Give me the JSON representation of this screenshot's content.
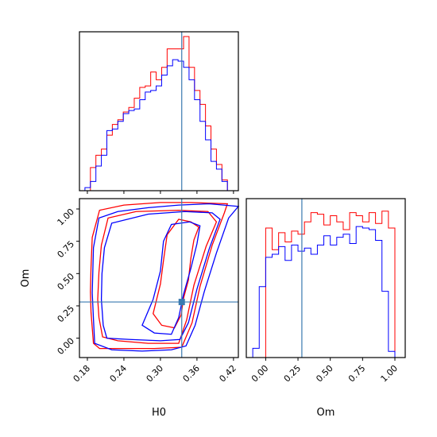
{
  "chart_data": [
    {
      "id": "h0_hist",
      "type": "histogram",
      "title": "",
      "xlabel": "",
      "ylabel": "",
      "xlim": [
        0.167,
        0.428
      ],
      "ylim": [
        0,
        1.0
      ],
      "x_ticks": [
        0.18,
        0.24,
        0.3,
        0.36,
        0.42
      ],
      "x_tick_labels_visible": false,
      "y_ticks_visible": false,
      "truth_line": {
        "value": 0.335,
        "color": "#3a7ab0"
      },
      "series": [
        {
          "color": "#ff0000",
          "bins_x": [
            0.167,
            0.176,
            0.185,
            0.194,
            0.203,
            0.212,
            0.221,
            0.23,
            0.239,
            0.248,
            0.257,
            0.266,
            0.275,
            0.284,
            0.293,
            0.302,
            0.311,
            0.32,
            0.329,
            0.338,
            0.347,
            0.356,
            0.365,
            0.374,
            0.383,
            0.392,
            0.401,
            0.41,
            0.419,
            0.428
          ],
          "values": [
            0.0,
            0.0,
            0.15,
            0.23,
            0.27,
            0.36,
            0.43,
            0.46,
            0.51,
            0.54,
            0.6,
            0.67,
            0.68,
            0.77,
            0.72,
            0.8,
            0.92,
            0.92,
            0.92,
            1.0,
            0.8,
            0.65,
            0.56,
            0.42,
            0.27,
            0.17,
            0.07,
            0.0,
            0.0
          ]
        },
        {
          "color": "#0000ff",
          "bins_x": [
            0.167,
            0.176,
            0.185,
            0.194,
            0.203,
            0.212,
            0.221,
            0.23,
            0.239,
            0.248,
            0.257,
            0.266,
            0.275,
            0.284,
            0.293,
            0.302,
            0.311,
            0.32,
            0.329,
            0.338,
            0.347,
            0.356,
            0.365,
            0.374,
            0.383,
            0.392,
            0.401,
            0.41,
            0.419,
            0.428
          ],
          "values": [
            0.0,
            0.02,
            0.06,
            0.16,
            0.23,
            0.39,
            0.4,
            0.45,
            0.5,
            0.52,
            0.53,
            0.59,
            0.64,
            0.65,
            0.68,
            0.75,
            0.81,
            0.85,
            0.84,
            0.8,
            0.72,
            0.59,
            0.45,
            0.33,
            0.19,
            0.14,
            0.06,
            0.0,
            0.0
          ]
        }
      ]
    },
    {
      "id": "joint_contour",
      "type": "contour",
      "title": "",
      "xlabel": "H0",
      "ylabel": "Om",
      "xlim": [
        0.167,
        0.428
      ],
      "ylim": [
        -0.15,
        1.08
      ],
      "x_ticks": [
        "0.18",
        "0.24",
        "0.30",
        "0.36",
        "0.42"
      ],
      "y_ticks": [
        "0.00",
        "0.25",
        "0.50",
        "0.75",
        "1.00"
      ],
      "truth_point": {
        "x": 0.335,
        "y": 0.28,
        "color": "#3a7ab0"
      },
      "series": [
        {
          "color": "#ff0000",
          "contours": [
            [
              [
                0.185,
                0.36
              ],
              [
                0.186,
                0.2
              ],
              [
                0.19,
                -0.04
              ],
              [
                0.2,
                -0.08
              ],
              [
                0.24,
                -0.08
              ],
              [
                0.29,
                -0.08
              ],
              [
                0.335,
                -0.07
              ],
              [
                0.352,
                0.12
              ],
              [
                0.365,
                0.4
              ],
              [
                0.385,
                0.72
              ],
              [
                0.405,
                0.97
              ],
              [
                0.41,
                1.04
              ],
              [
                0.35,
                1.05
              ],
              [
                0.3,
                1.05
              ],
              [
                0.24,
                1.03
              ],
              [
                0.2,
                0.99
              ],
              [
                0.188,
                0.78
              ],
              [
                0.186,
                0.55
              ],
              [
                0.185,
                0.36
              ]
            ],
            [
              [
                0.197,
                0.3
              ],
              [
                0.199,
                0.16
              ],
              [
                0.205,
                0.01
              ],
              [
                0.23,
                -0.02
              ],
              [
                0.28,
                -0.04
              ],
              [
                0.33,
                -0.04
              ],
              [
                0.343,
                0.14
              ],
              [
                0.355,
                0.41
              ],
              [
                0.375,
                0.71
              ],
              [
                0.392,
                0.9
              ],
              [
                0.378,
                0.98
              ],
              [
                0.33,
                0.99
              ],
              [
                0.26,
                0.98
              ],
              [
                0.214,
                0.93
              ],
              [
                0.203,
                0.72
              ],
              [
                0.199,
                0.51
              ],
              [
                0.197,
                0.3
              ]
            ],
            [
              [
                0.288,
                0.19
              ],
              [
                0.302,
                0.1
              ],
              [
                0.323,
                0.08
              ],
              [
                0.334,
                0.18
              ],
              [
                0.338,
                0.31
              ],
              [
                0.346,
                0.45
              ],
              [
                0.35,
                0.62
              ],
              [
                0.355,
                0.76
              ],
              [
                0.363,
                0.86
              ],
              [
                0.35,
                0.9
              ],
              [
                0.33,
                0.92
              ],
              [
                0.311,
                0.8
              ],
              [
                0.305,
                0.6
              ],
              [
                0.3,
                0.42
              ],
              [
                0.288,
                0.19
              ]
            ]
          ]
        },
        {
          "color": "#0000ff",
          "contours": [
            [
              [
                0.188,
                0.35
              ],
              [
                0.19,
                0.15
              ],
              [
                0.192,
                -0.04
              ],
              [
                0.22,
                -0.09
              ],
              [
                0.27,
                -0.1
              ],
              [
                0.318,
                -0.09
              ],
              [
                0.342,
                -0.06
              ],
              [
                0.357,
                0.1
              ],
              [
                0.372,
                0.36
              ],
              [
                0.392,
                0.66
              ],
              [
                0.412,
                0.93
              ],
              [
                0.428,
                1.02
              ],
              [
                0.38,
                1.04
              ],
              [
                0.33,
                1.03
              ],
              [
                0.28,
                1.01
              ],
              [
                0.23,
                0.98
              ],
              [
                0.199,
                0.93
              ],
              [
                0.19,
                0.7
              ],
              [
                0.188,
                0.35
              ]
            ],
            [
              [
                0.203,
                0.3
              ],
              [
                0.206,
                0.1
              ],
              [
                0.212,
                0.0
              ],
              [
                0.25,
                -0.01
              ],
              [
                0.3,
                -0.02
              ],
              [
                0.332,
                -0.01
              ],
              [
                0.346,
                0.12
              ],
              [
                0.36,
                0.38
              ],
              [
                0.38,
                0.69
              ],
              [
                0.398,
                0.92
              ],
              [
                0.385,
                0.97
              ],
              [
                0.34,
                0.98
              ],
              [
                0.28,
                0.96
              ],
              [
                0.22,
                0.89
              ],
              [
                0.208,
                0.7
              ],
              [
                0.204,
                0.5
              ],
              [
                0.203,
                0.3
              ]
            ],
            [
              [
                0.27,
                0.1
              ],
              [
                0.29,
                0.04
              ],
              [
                0.318,
                0.03
              ],
              [
                0.33,
                0.16
              ],
              [
                0.338,
                0.34
              ],
              [
                0.35,
                0.54
              ],
              [
                0.36,
                0.73
              ],
              [
                0.365,
                0.87
              ],
              [
                0.348,
                0.9
              ],
              [
                0.318,
                0.88
              ],
              [
                0.305,
                0.75
              ],
              [
                0.3,
                0.52
              ],
              [
                0.288,
                0.3
              ],
              [
                0.27,
                0.1
              ]
            ]
          ]
        }
      ]
    },
    {
      "id": "om_hist",
      "type": "histogram",
      "title": "",
      "xlabel": "Om",
      "ylabel": "",
      "xlim": [
        -0.15,
        1.08
      ],
      "ylim": [
        0,
        1.0
      ],
      "x_ticks": [
        "0.00",
        "0.25",
        "0.50",
        "0.75",
        "1.00"
      ],
      "y_ticks_visible": false,
      "truth_line": {
        "value": 0.28,
        "color": "#3a7ab0"
      },
      "series": [
        {
          "color": "#ff0000",
          "bins_x": [
            -0.1,
            -0.05,
            0.0,
            0.05,
            0.1,
            0.15,
            0.2,
            0.25,
            0.3,
            0.35,
            0.4,
            0.45,
            0.5,
            0.55,
            0.6,
            0.65,
            0.7,
            0.75,
            0.8,
            0.85,
            0.9,
            0.95,
            1.0
          ],
          "values": [
            0.0,
            0.0,
            0.84,
            0.7,
            0.81,
            0.75,
            0.82,
            0.8,
            0.88,
            0.94,
            0.93,
            0.86,
            0.92,
            0.88,
            0.83,
            0.94,
            0.92,
            0.88,
            0.94,
            0.87,
            0.95,
            0.84
          ]
        },
        {
          "color": "#0000ff",
          "bins_x": [
            -0.1,
            -0.05,
            0.0,
            0.05,
            0.1,
            0.15,
            0.2,
            0.25,
            0.3,
            0.35,
            0.4,
            0.45,
            0.5,
            0.55,
            0.6,
            0.65,
            0.7,
            0.75,
            0.8,
            0.85,
            0.9,
            0.95,
            1.0
          ],
          "values": [
            0.06,
            0.46,
            0.65,
            0.67,
            0.72,
            0.63,
            0.73,
            0.69,
            0.71,
            0.67,
            0.73,
            0.79,
            0.73,
            0.78,
            0.8,
            0.74,
            0.85,
            0.84,
            0.83,
            0.76,
            0.43,
            0.04
          ]
        }
      ]
    }
  ]
}
